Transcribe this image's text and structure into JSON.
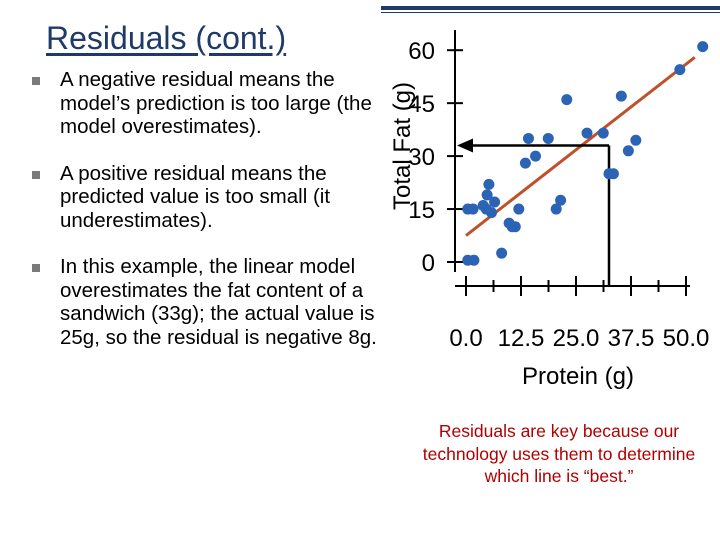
{
  "slide": {
    "title": "Residuals (cont.)",
    "bullets": [
      "A negative residual means the model’s prediction is too large (the model overestimates).",
      "A positive residual means the predicted value is too small (it underestimates).",
      "In this example, the linear model overestimates the fat content of a sandwich (33g); the actual value is 25g, so the residual is negative 8g."
    ],
    "caption": "Residuals are key because our technology uses them to determine which line is “best.”"
  },
  "colors": {
    "title": "#1f3a66",
    "caption": "#b00000",
    "points": "#2b63b5",
    "regression_line": "#c0502a",
    "axes": "#000000"
  },
  "chart_data": {
    "type": "scatter",
    "xlabel": "Protein (g)",
    "ylabel": "Total Fat (g)",
    "xticks": [
      "0.0",
      "12.5",
      "25.0",
      "37.5",
      "50.0"
    ],
    "yticks": [
      "0",
      "15",
      "30",
      "45",
      "60"
    ],
    "xlim": [
      -1,
      52
    ],
    "ylim": [
      -3,
      63
    ],
    "points": [
      [
        0.4,
        0.5
      ],
      [
        1.8,
        0.5
      ],
      [
        0.4,
        15
      ],
      [
        1.6,
        15
      ],
      [
        3.9,
        16
      ],
      [
        4.6,
        15
      ],
      [
        4.8,
        19
      ],
      [
        5.2,
        22
      ],
      [
        5.8,
        14
      ],
      [
        6.5,
        17
      ],
      [
        8.1,
        2.5
      ],
      [
        9.8,
        11
      ],
      [
        10.5,
        10
      ],
      [
        11.2,
        10
      ],
      [
        12,
        15
      ],
      [
        13.5,
        28
      ],
      [
        14.2,
        35
      ],
      [
        15.8,
        30
      ],
      [
        18.7,
        35
      ],
      [
        20.5,
        15
      ],
      [
        21.5,
        17.5
      ],
      [
        22.9,
        46
      ],
      [
        27.5,
        36.5
      ],
      [
        31.2,
        36.5
      ],
      [
        32.5,
        25
      ],
      [
        33.5,
        25
      ],
      [
        35.3,
        47
      ],
      [
        36.9,
        31.5
      ],
      [
        38.6,
        34.5
      ],
      [
        48.6,
        54.5
      ],
      [
        53.8,
        61
      ]
    ],
    "regression": {
      "x0": 0,
      "y0": 7.5,
      "x1": 52,
      "y1": 58
    },
    "annotation": {
      "x": 32.5,
      "y_predicted": 33,
      "y_actual": 25
    }
  }
}
